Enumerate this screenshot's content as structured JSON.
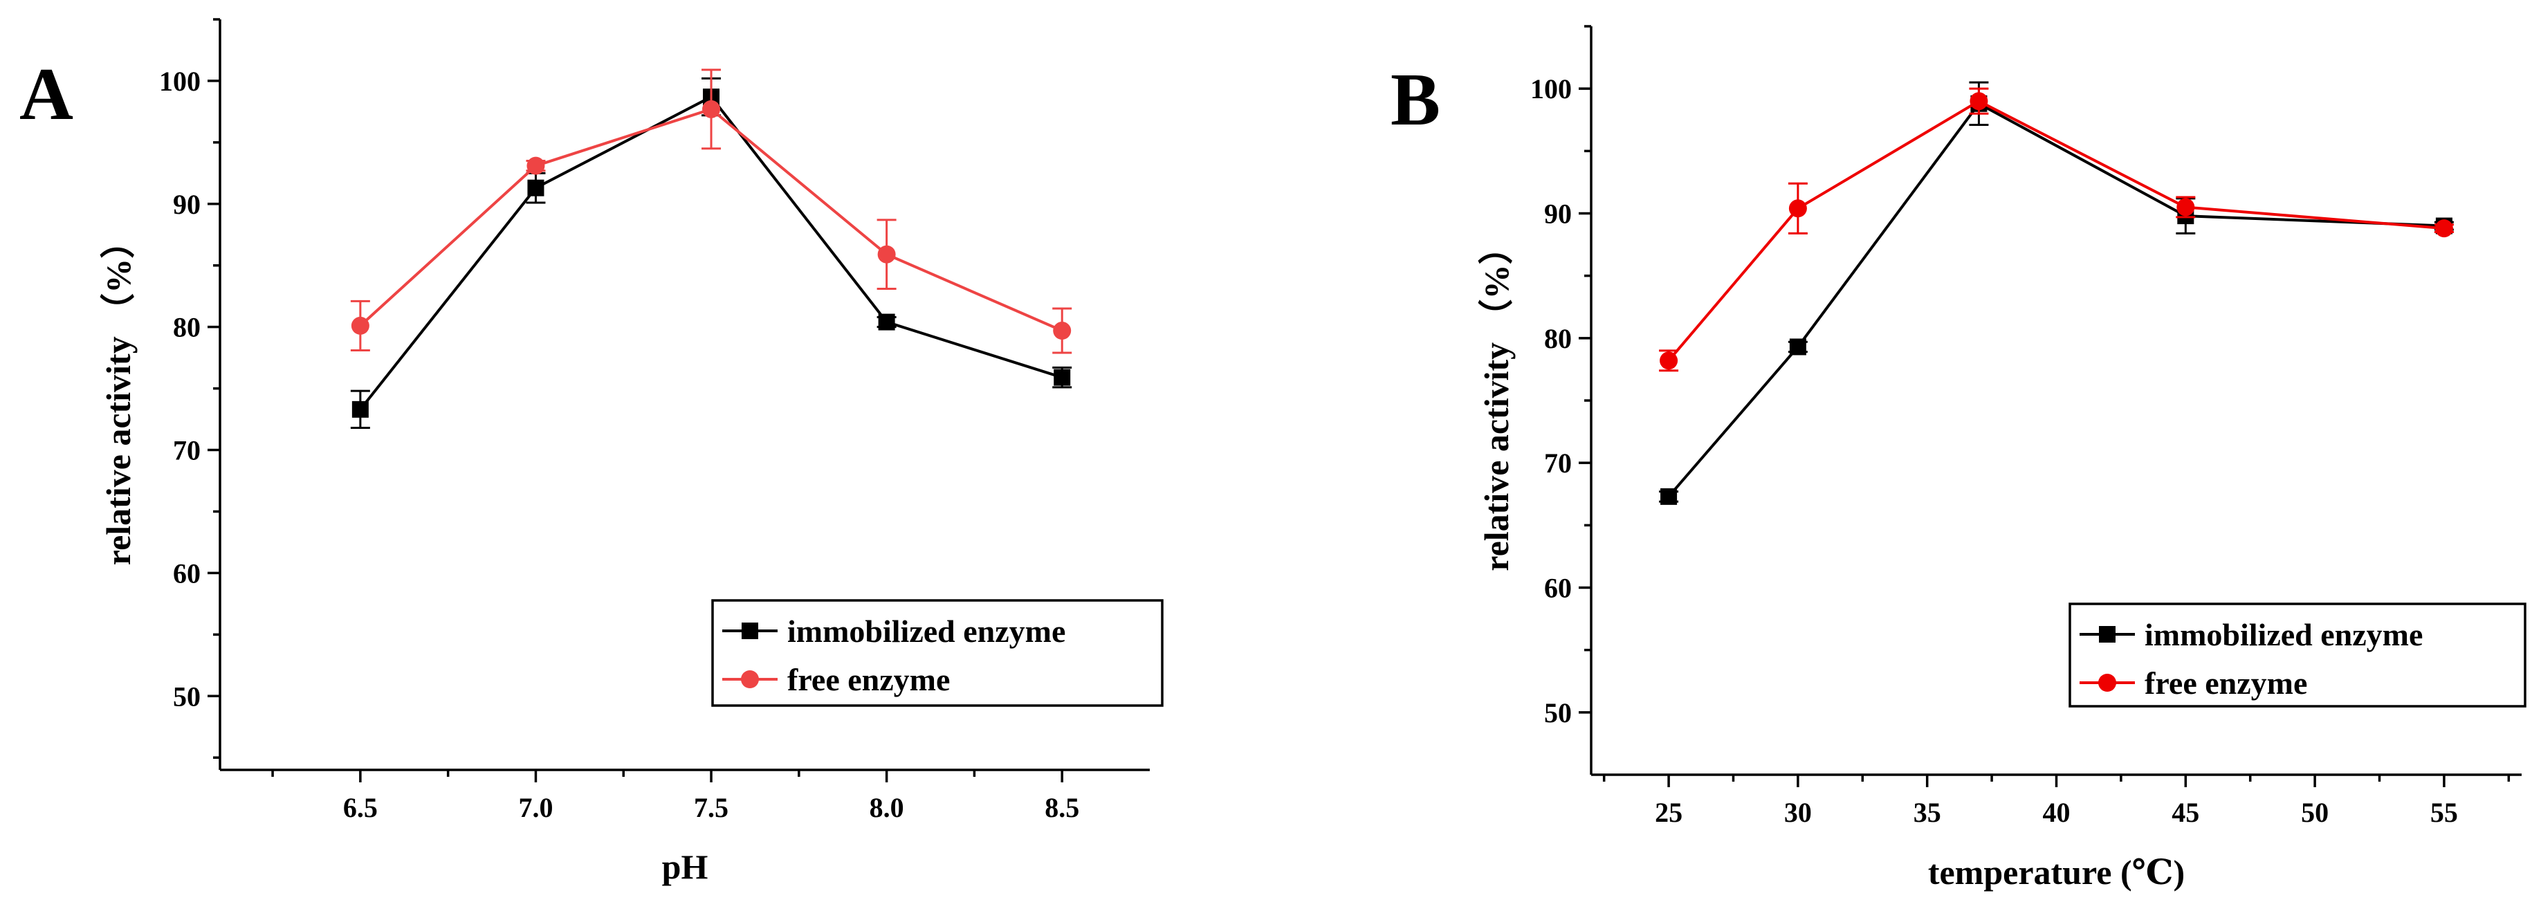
{
  "colors": {
    "immobilized": "#000000",
    "free_A": "#ee4444",
    "free_B": "#ee0000"
  },
  "chart_data": [
    {
      "type": "line",
      "panel_label": "A",
      "xlabel": "pH",
      "ylabel": "relative activity （%）",
      "xlim": [
        6.1,
        8.75
      ],
      "ylim": [
        44,
        105
      ],
      "x_ticks": [
        6.5,
        7.0,
        7.5,
        8.0,
        8.5
      ],
      "x_tick_labels": [
        "6.5",
        "7.0",
        "7.5",
        "8.0",
        "8.5"
      ],
      "y_ticks": [
        50,
        60,
        70,
        80,
        90,
        100
      ],
      "y_tick_labels": [
        "50",
        "60",
        "70",
        "80",
        "90",
        "100"
      ],
      "grid": false,
      "legend_position": "bottom-right",
      "series": [
        {
          "name": "immobilized enzyme",
          "marker": "square",
          "color": "#000000",
          "x": [
            6.5,
            7.0,
            7.5,
            8.0,
            8.5
          ],
          "y": [
            73.3,
            91.3,
            98.7,
            80.4,
            75.9
          ],
          "error": [
            1.5,
            1.2,
            1.5,
            0.4,
            0.8
          ]
        },
        {
          "name": "free enzyme",
          "marker": "circle",
          "color": "#ee4444",
          "x": [
            6.5,
            7.0,
            7.5,
            8.0,
            8.5
          ],
          "y": [
            80.1,
            93.1,
            97.7,
            85.9,
            79.7
          ],
          "error": [
            2.0,
            0.4,
            3.2,
            2.8,
            1.8
          ]
        }
      ]
    },
    {
      "type": "line",
      "panel_label": "B",
      "xlabel": "temperature (℃)",
      "ylabel": "relative activity （%）",
      "xlim": [
        22,
        58
      ],
      "ylim": [
        45,
        105
      ],
      "x_ticks": [
        25,
        30,
        35,
        40,
        45,
        50,
        55
      ],
      "x_tick_labels": [
        "25",
        "30",
        "35",
        "40",
        "45",
        "50",
        "55"
      ],
      "y_ticks": [
        50,
        60,
        70,
        80,
        90,
        100
      ],
      "y_tick_labels": [
        "50",
        "60",
        "70",
        "80",
        "90",
        "100"
      ],
      "grid": false,
      "legend_position": "bottom-right",
      "series": [
        {
          "name": "immobilized enzyme",
          "marker": "square",
          "color": "#000000",
          "x": [
            25,
            30,
            37,
            45,
            55
          ],
          "y": [
            67.3,
            79.3,
            98.8,
            89.8,
            89.0
          ],
          "error": [
            0.4,
            0.4,
            1.7,
            1.4,
            0.3
          ]
        },
        {
          "name": "free enzyme",
          "marker": "circle",
          "color": "#ee0000",
          "x": [
            25,
            30,
            37,
            45,
            55
          ],
          "y": [
            78.2,
            90.4,
            99.0,
            90.5,
            88.8
          ],
          "error": [
            0.8,
            2.0,
            1.0,
            0.8,
            0.3
          ]
        }
      ]
    }
  ]
}
